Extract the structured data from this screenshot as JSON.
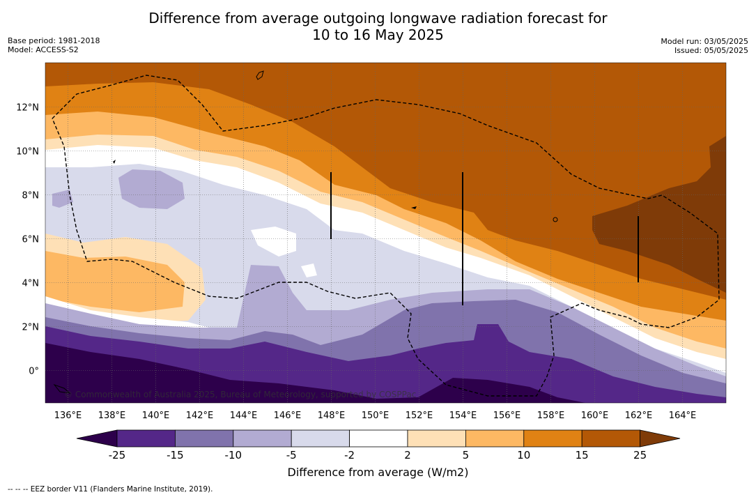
{
  "title": {
    "line1": "Difference from average outgoing longwave radiation forecast for",
    "line2": "10 to 16 May 2025"
  },
  "meta": {
    "base_period": "Base period: 1981-2018",
    "model": "Model: ACCESS-S2",
    "model_run": "Model run: 03/05/2025",
    "issued": "Issued: 05/05/2025"
  },
  "map": {
    "lon_ticks": [
      "136°E",
      "138°E",
      "140°E",
      "142°E",
      "144°E",
      "146°E",
      "148°E",
      "150°E",
      "152°E",
      "154°E",
      "156°E",
      "158°E",
      "160°E",
      "162°E",
      "164°E"
    ],
    "lat_ticks": [
      "12°N",
      "10°N",
      "8°N",
      "6°N",
      "4°N",
      "2°N",
      "0°"
    ],
    "watermark": "© Commonwealth of Australia 2025, Bureau of Meteorology, supported by COSPPac"
  },
  "colorbar": {
    "label": "Difference from average (W/m2)",
    "ticks": [
      "-25",
      "-15",
      "-10",
      "-5",
      "-2",
      "2",
      "5",
      "10",
      "15",
      "25"
    ],
    "colors": [
      "#2d004b",
      "#542788",
      "#8073ac",
      "#b2abd2",
      "#d8daeb",
      "#ffffff",
      "#fee0b6",
      "#fdb863",
      "#e08214",
      "#b35806",
      "#7f3b08"
    ]
  },
  "footnote": "--  --  -- EEZ border V11 (Flanders Marine Institute, 2019)."
}
